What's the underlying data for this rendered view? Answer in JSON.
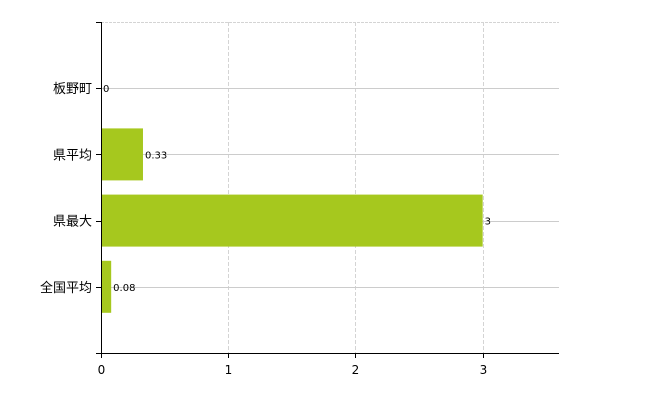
{
  "chart_data": {
    "type": "bar",
    "orientation": "horizontal",
    "categories": [
      "板野町",
      "県平均",
      "県最大",
      "全国平均"
    ],
    "values": [
      0,
      0.33,
      3,
      0.08
    ],
    "data_labels": [
      "0",
      "0.33",
      "3",
      "0.08"
    ],
    "xlim": [
      0,
      3.6
    ],
    "x_ticks": [
      "0",
      "1",
      "2",
      "3"
    ],
    "grid": true,
    "bar_color": "#a6c81e",
    "title": "",
    "xlabel": "",
    "ylabel": ""
  }
}
